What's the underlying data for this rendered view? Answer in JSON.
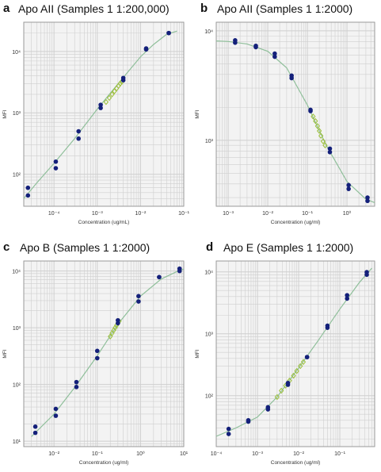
{
  "chart_data": [
    {
      "letter": "a",
      "title": "Apo AII (Samples 1 1:200,000)",
      "type": "scatter",
      "xscale": "log",
      "yscale": "log",
      "xlim": [
        2e-05,
        0.1
      ],
      "ylim": [
        30,
        30000
      ],
      "xticks": [
        0.0001,
        0.001,
        0.01,
        0.1
      ],
      "xticklabels": [
        "10⁻⁴",
        "10⁻³",
        "10⁻²",
        "10⁻¹"
      ],
      "yticks": [
        100,
        1000,
        10000
      ],
      "yticklabels": [
        "10²",
        "10³",
        "10⁴"
      ],
      "xlabel": "Concentration (ug/mL)",
      "ylabel": "MFI",
      "grid": true,
      "standards": [
        [
          2.5e-05,
          45
        ],
        [
          2.5e-05,
          60
        ],
        [
          0.00011,
          125
        ],
        [
          0.00011,
          160
        ],
        [
          0.00037,
          380
        ],
        [
          0.00037,
          500
        ],
        [
          0.0012,
          1200
        ],
        [
          0.0012,
          1350
        ],
        [
          0.004,
          3400
        ],
        [
          0.004,
          3700
        ],
        [
          0.0135,
          10800
        ],
        [
          0.0135,
          11200
        ],
        [
          0.045,
          20000
        ],
        [
          0.045,
          20000
        ]
      ],
      "samples": [
        [
          0.0016,
          1500
        ],
        [
          0.0019,
          1750
        ],
        [
          0.0022,
          2000
        ],
        [
          0.0025,
          2250
        ],
        [
          0.0028,
          2500
        ],
        [
          0.0031,
          2750
        ],
        [
          0.0034,
          3000
        ],
        [
          0.0037,
          3200
        ]
      ],
      "curve": [
        [
          2e-05,
          40
        ],
        [
          4e-05,
          72
        ],
        [
          0.0001,
          150
        ],
        [
          0.0003,
          380
        ],
        [
          0.001,
          1150
        ],
        [
          0.003,
          2950
        ],
        [
          0.01,
          8200
        ],
        [
          0.02,
          13000
        ],
        [
          0.04,
          19000
        ],
        [
          0.07,
          21500
        ]
      ]
    },
    {
      "letter": "b",
      "title": "Apo AII (Samples 1 1:2000)",
      "type": "scatter",
      "xscale": "log",
      "yscale": "log",
      "xlim": [
        0.0005,
        5
      ],
      "ylim": [
        250,
        12000
      ],
      "xticks": [
        0.001,
        0.01,
        0.1,
        1
      ],
      "xticklabels": [
        "10⁻³",
        "10⁻²",
        "10⁻¹",
        "10⁰"
      ],
      "yticks": [
        1000,
        10000
      ],
      "yticklabels": [
        "10³",
        "10⁴"
      ],
      "xlabel": "Concentration (ug/ml)",
      "ylabel": "MFI",
      "grid": true,
      "standards": [
        [
          0.0015,
          7800
        ],
        [
          0.0015,
          8200
        ],
        [
          0.005,
          7300
        ],
        [
          0.005,
          7100
        ],
        [
          0.015,
          5800
        ],
        [
          0.015,
          6200
        ],
        [
          0.04,
          3700
        ],
        [
          0.04,
          3900
        ],
        [
          0.12,
          1850
        ],
        [
          0.12,
          1900
        ],
        [
          0.37,
          780
        ],
        [
          0.37,
          840
        ],
        [
          1.1,
          360
        ],
        [
          1.1,
          390
        ],
        [
          3.3,
          280
        ],
        [
          3.3,
          300
        ]
      ],
      "samples": [
        [
          0.14,
          1650
        ],
        [
          0.16,
          1500
        ],
        [
          0.18,
          1350
        ],
        [
          0.2,
          1220
        ],
        [
          0.22,
          1100
        ],
        [
          0.25,
          980
        ],
        [
          0.28,
          900
        ]
      ],
      "curve": [
        [
          0.0005,
          8100
        ],
        [
          0.001,
          8000
        ],
        [
          0.003,
          7600
        ],
        [
          0.01,
          6500
        ],
        [
          0.03,
          4600
        ],
        [
          0.1,
          2100
        ],
        [
          0.3,
          900
        ],
        [
          1,
          420
        ],
        [
          3,
          290
        ],
        [
          5,
          270
        ]
      ]
    },
    {
      "letter": "c",
      "title": "Apo B (Samples 1 1:2000)",
      "type": "scatter",
      "xscale": "log",
      "yscale": "log",
      "xlim": [
        0.002,
        10
      ],
      "ylim": [
        8,
        15000
      ],
      "xticks": [
        0.01,
        0.1,
        1,
        10
      ],
      "xticklabels": [
        "10⁻²",
        "10⁻¹",
        "10⁰",
        "10¹"
      ],
      "yticks": [
        10,
        100,
        1000,
        10000
      ],
      "yticklabels": [
        "10¹",
        "10²",
        "10³",
        "10⁴"
      ],
      "xlabel": "Concentration (ug/ml)",
      "ylabel": "MFI",
      "grid": true,
      "standards": [
        [
          0.0037,
          14
        ],
        [
          0.0037,
          18
        ],
        [
          0.011,
          28
        ],
        [
          0.011,
          37
        ],
        [
          0.033,
          90
        ],
        [
          0.033,
          110
        ],
        [
          0.1,
          290
        ],
        [
          0.1,
          390
        ],
        [
          0.3,
          1200
        ],
        [
          0.3,
          1350
        ],
        [
          0.9,
          2900
        ],
        [
          0.9,
          3600
        ],
        [
          2.7,
          7800
        ],
        [
          2.7,
          7800
        ],
        [
          8,
          10000
        ],
        [
          8,
          11000
        ]
      ],
      "samples": [
        [
          0.2,
          700
        ],
        [
          0.22,
          800
        ],
        [
          0.24,
          900
        ],
        [
          0.26,
          1000
        ],
        [
          0.28,
          1100
        ],
        [
          0.3,
          1200
        ],
        [
          0.32,
          1300
        ]
      ],
      "curve": [
        [
          0.003,
          12
        ],
        [
          0.01,
          30
        ],
        [
          0.03,
          88
        ],
        [
          0.1,
          320
        ],
        [
          0.3,
          1150
        ],
        [
          1,
          3600
        ],
        [
          3,
          7200
        ],
        [
          8,
          10300
        ],
        [
          10,
          10800
        ]
      ]
    },
    {
      "letter": "d",
      "title": "Apo E (Samples 1 1:2000)",
      "type": "scatter",
      "xscale": "log",
      "yscale": "log",
      "xlim": [
        0.0001,
        0.7
      ],
      "ylim": [
        15,
        15000
      ],
      "xticks": [
        0.0001,
        0.001,
        0.01,
        0.1
      ],
      "xticklabels": [
        "10⁻⁴",
        "10⁻³",
        "10⁻²",
        "10⁻¹"
      ],
      "yticks": [
        100,
        1000,
        10000
      ],
      "yticklabels": [
        "10²",
        "10³",
        "10⁴"
      ],
      "xlabel": "Concentration (ug/ml)",
      "ylabel": "MFI",
      "grid": true,
      "standards": [
        [
          0.0002,
          24
        ],
        [
          0.0002,
          29
        ],
        [
          0.0006,
          38
        ],
        [
          0.0006,
          40
        ],
        [
          0.0018,
          60
        ],
        [
          0.0018,
          65
        ],
        [
          0.0055,
          150
        ],
        [
          0.0055,
          160
        ],
        [
          0.016,
          420
        ],
        [
          0.016,
          420
        ],
        [
          0.05,
          1250
        ],
        [
          0.05,
          1350
        ],
        [
          0.15,
          3700
        ],
        [
          0.15,
          4200
        ],
        [
          0.45,
          9000
        ],
        [
          0.45,
          9900
        ]
      ],
      "samples": [
        [
          0.003,
          95
        ],
        [
          0.0038,
          120
        ],
        [
          0.0048,
          145
        ],
        [
          0.006,
          175
        ],
        [
          0.0075,
          210
        ],
        [
          0.009,
          250
        ],
        [
          0.011,
          300
        ],
        [
          0.013,
          350
        ]
      ],
      "curve": [
        [
          0.0001,
          22
        ],
        [
          0.0003,
          30
        ],
        [
          0.001,
          45
        ],
        [
          0.003,
          95
        ],
        [
          0.01,
          280
        ],
        [
          0.03,
          780
        ],
        [
          0.1,
          2500
        ],
        [
          0.3,
          6800
        ],
        [
          0.6,
          11500
        ]
      ]
    }
  ],
  "colors": {
    "standard_point": "#14207a",
    "sample_point": "#9cbf3a",
    "fit_curve": "#8fbf9a",
    "grid": "#cfcfcf",
    "plot_bg": "#f3f3f3",
    "frame": "#9a9a9a"
  }
}
